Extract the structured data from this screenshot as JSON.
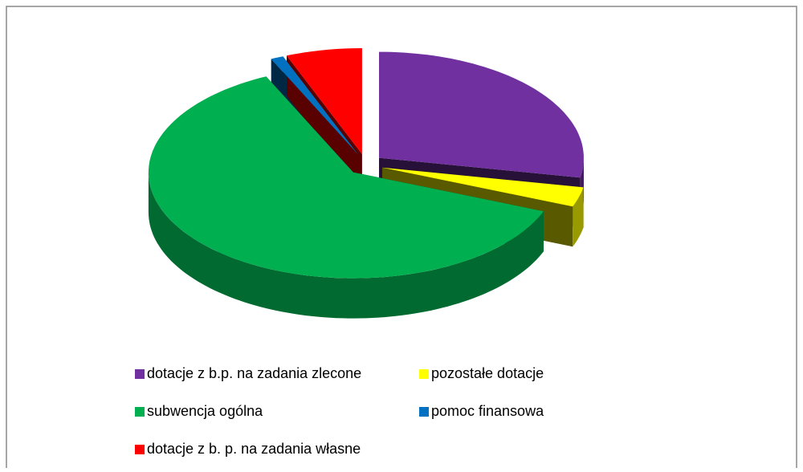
{
  "chart_data": {
    "type": "pie",
    "categories": [
      "dotacje z b.p. na zadania zlecone",
      "pozostałe dotacje",
      "subwencja ogólna",
      "pomoc finansowa",
      "dotacje z b. p. na zadania własne"
    ],
    "values": [
      28,
      3,
      62,
      1,
      6
    ],
    "colors": [
      "#7030a0",
      "#ffff00",
      "#00b050",
      "#0070c0",
      "#ff0000"
    ],
    "legend": "bottom"
  }
}
